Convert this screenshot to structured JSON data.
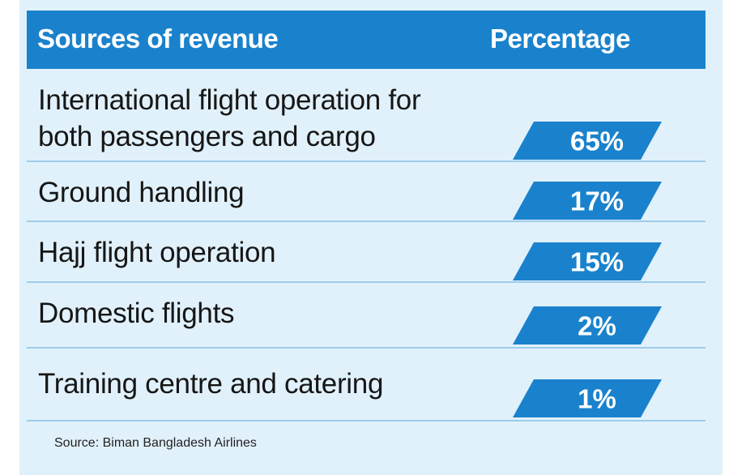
{
  "header": {
    "left_label": "Sources of revenue",
    "right_label": "Percentage"
  },
  "colors": {
    "header_bg": "#1a82cc",
    "badge": "#1a82cc",
    "panel_bg": "#e1f1fb",
    "divider": "#9cccec"
  },
  "chart_data": {
    "type": "table",
    "columns": [
      "Sources of revenue",
      "Percentage"
    ],
    "rows": [
      {
        "source_line1": "International flight operation for",
        "source_line2": "both passengers and cargo",
        "value": 65,
        "label": "65%"
      },
      {
        "source_line1": "Ground handling",
        "source_line2": "",
        "value": 17,
        "label": "17%"
      },
      {
        "source_line1": "Hajj flight operation",
        "source_line2": "",
        "value": 15,
        "label": "15%"
      },
      {
        "source_line1": "Domestic flights",
        "source_line2": "",
        "value": 2,
        "label": "2%"
      },
      {
        "source_line1": "Training centre and catering",
        "source_line2": "",
        "value": 1,
        "label": "1%"
      }
    ]
  },
  "footer": {
    "source": "Source: Biman Bangladesh Airlines"
  }
}
